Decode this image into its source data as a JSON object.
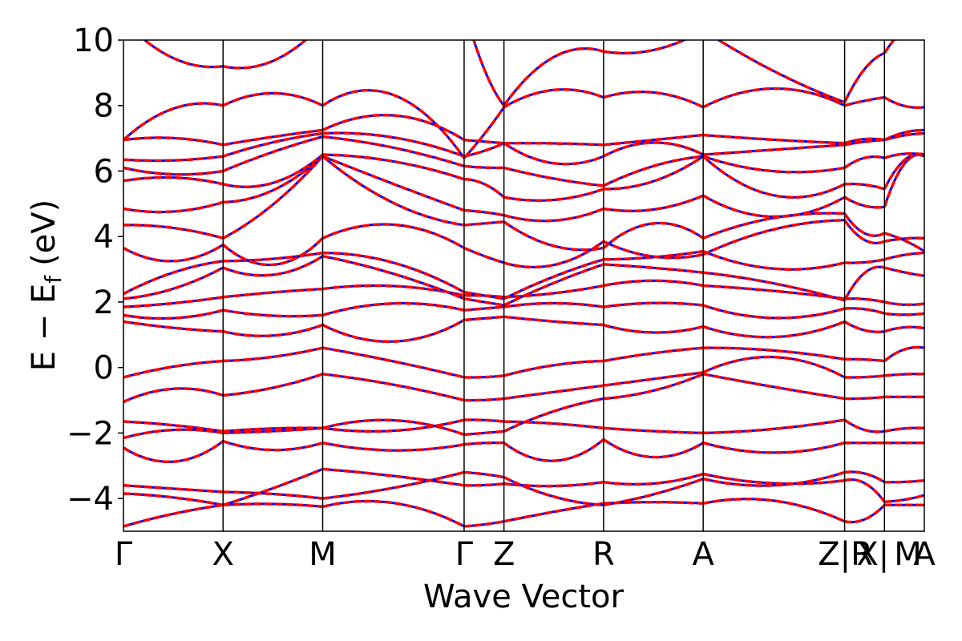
{
  "chart_data": {
    "type": "line",
    "xlabel": "Wave Vector",
    "ylabel_main": "E − E",
    "ylabel_sub": "f",
    "ylabel_unit": "(eV)",
    "ylim": [
      -5,
      10
    ],
    "yticks": [
      -4,
      -2,
      0,
      2,
      4,
      6,
      8,
      10
    ],
    "ytick_labels": [
      "−4",
      "−2",
      "0",
      "2",
      "4",
      "6",
      "8",
      "10"
    ],
    "kpoints": [
      {
        "label": "Γ",
        "pos": 0.0
      },
      {
        "label": "X",
        "pos": 0.5
      },
      {
        "label": "M",
        "pos": 1.0
      },
      {
        "label": "Γ",
        "pos": 1.71
      },
      {
        "label": "Z",
        "pos": 1.91
      },
      {
        "label": "R",
        "pos": 2.41
      },
      {
        "label": "A",
        "pos": 2.91
      },
      {
        "label": "Z",
        "pos": 3.62
      },
      {
        "label": "|R",
        "pos": 3.62
      },
      {
        "label": "X|",
        "pos": 3.82
      },
      {
        "label": "M",
        "pos": 3.82
      },
      {
        "label": "A",
        "pos": 4.02
      }
    ],
    "x_range": [
      0,
      4.02
    ],
    "series_colors": {
      "reference": "#ff0000",
      "comparison": "#0000ff"
    },
    "segments": [
      {
        "x_start": 0.0,
        "x_end": 0.5,
        "bands": [
          [
            -4.85,
            -4.45,
            -4.2
          ],
          [
            -3.85,
            -3.95,
            -4.2
          ],
          [
            -3.6,
            -3.7,
            -3.8
          ],
          [
            -2.45,
            -3.05,
            -2.25
          ],
          [
            -2.15,
            -1.85,
            -2.0
          ],
          [
            -1.65,
            -1.75,
            -1.95
          ],
          [
            -1.05,
            -0.55,
            -0.85
          ],
          [
            -0.3,
            0.05,
            0.2
          ],
          [
            1.4,
            1.2,
            1.1
          ],
          [
            1.6,
            1.45,
            1.75
          ],
          [
            1.85,
            1.95,
            2.15
          ],
          [
            2.1,
            2.35,
            3.05
          ],
          [
            2.25,
            2.95,
            3.25
          ],
          [
            3.65,
            3.1,
            3.75
          ],
          [
            4.35,
            4.3,
            3.95
          ],
          [
            4.85,
            4.7,
            5.05
          ],
          [
            5.7,
            5.85,
            5.6
          ],
          [
            6.1,
            5.85,
            6.0
          ],
          [
            6.35,
            6.3,
            6.45
          ],
          [
            6.95,
            7.05,
            6.8
          ],
          [
            6.95,
            8.05,
            8.0
          ],
          [
            10.6,
            9.3,
            9.2
          ]
        ]
      },
      {
        "x_start": 0.5,
        "x_end": 1.0,
        "bands": [
          [
            -4.2,
            -4.15,
            -4.25
          ],
          [
            -4.2,
            -3.7,
            -3.1
          ],
          [
            -3.8,
            -3.85,
            -4.0
          ],
          [
            -2.25,
            -2.6,
            -2.3
          ],
          [
            -2.0,
            -1.95,
            -1.85
          ],
          [
            -1.95,
            -1.85,
            -1.85
          ],
          [
            -0.85,
            -0.65,
            -0.2
          ],
          [
            0.2,
            0.3,
            0.6
          ],
          [
            1.1,
            0.9,
            1.3
          ],
          [
            1.75,
            1.55,
            1.6
          ],
          [
            2.15,
            2.3,
            2.4
          ],
          [
            3.05,
            2.7,
            3.4
          ],
          [
            3.25,
            3.3,
            3.5
          ],
          [
            3.75,
            2.9,
            3.95
          ],
          [
            3.95,
            4.9,
            6.45
          ],
          [
            5.05,
            5.3,
            6.45
          ],
          [
            5.6,
            5.5,
            6.5
          ],
          [
            6.0,
            6.6,
            7.05
          ],
          [
            6.45,
            6.9,
            7.15
          ],
          [
            6.8,
            7.05,
            7.25
          ],
          [
            8.0,
            8.5,
            8.0
          ],
          [
            9.2,
            9.2,
            10.5
          ]
        ]
      },
      {
        "x_start": 1.0,
        "x_end": 1.71,
        "bands": [
          [
            -4.25,
            -4.0,
            -4.85
          ],
          [
            -3.1,
            -3.3,
            -3.6
          ],
          [
            -4.0,
            -3.7,
            -3.2
          ],
          [
            -2.3,
            -2.6,
            -2.35
          ],
          [
            -1.85,
            -2.0,
            -1.6
          ],
          [
            -1.85,
            -1.5,
            -2.05
          ],
          [
            -0.2,
            -0.5,
            -1.0
          ],
          [
            0.6,
            0.2,
            -0.3
          ],
          [
            1.3,
            0.6,
            1.45
          ],
          [
            1.6,
            2.05,
            1.75
          ],
          [
            2.4,
            2.55,
            2.2
          ],
          [
            3.4,
            2.9,
            2.1
          ],
          [
            3.5,
            3.3,
            2.3
          ],
          [
            3.95,
            4.55,
            3.65
          ],
          [
            6.45,
            4.9,
            4.35
          ],
          [
            6.45,
            5.6,
            4.8
          ],
          [
            6.5,
            6.35,
            5.75
          ],
          [
            7.05,
            6.75,
            6.15
          ],
          [
            7.15,
            7.1,
            6.45
          ],
          [
            7.25,
            7.9,
            6.95
          ],
          [
            8.0,
            8.7,
            6.4
          ],
          [
            10.5,
            9.9,
            11.0
          ]
        ]
      },
      {
        "x_start": 1.71,
        "x_end": 1.91,
        "bands": [
          [
            -4.85,
            -4.8,
            -4.7
          ],
          [
            -3.6,
            -3.6,
            -3.55
          ],
          [
            -3.2,
            -3.25,
            -3.35
          ],
          [
            -2.35,
            -2.3,
            -2.3
          ],
          [
            -1.6,
            -1.6,
            -1.65
          ],
          [
            -2.05,
            -2.0,
            -1.95
          ],
          [
            -1.0,
            -1.0,
            -0.95
          ],
          [
            -0.3,
            -0.3,
            -0.25
          ],
          [
            1.45,
            1.5,
            1.55
          ],
          [
            1.75,
            1.8,
            1.85
          ],
          [
            2.2,
            2.2,
            2.15
          ],
          [
            2.1,
            2.0,
            1.9
          ],
          [
            2.3,
            2.2,
            2.1
          ],
          [
            3.65,
            3.4,
            3.2
          ],
          [
            4.35,
            4.4,
            4.45
          ],
          [
            4.8,
            4.75,
            4.65
          ],
          [
            5.75,
            5.65,
            5.2
          ],
          [
            6.15,
            6.1,
            6.1
          ],
          [
            6.45,
            6.6,
            6.85
          ],
          [
            6.95,
            6.9,
            6.85
          ],
          [
            6.4,
            7.1,
            7.95
          ],
          [
            11.0,
            9.0,
            8.0
          ]
        ]
      },
      {
        "x_start": 1.91,
        "x_end": 2.41,
        "bands": [
          [
            -4.7,
            -4.4,
            -4.15
          ],
          [
            -3.55,
            -3.65,
            -3.5
          ],
          [
            -3.35,
            -4.0,
            -4.2
          ],
          [
            -2.3,
            -3.05,
            -2.2
          ],
          [
            -1.65,
            -1.7,
            -1.85
          ],
          [
            -1.95,
            -1.3,
            -0.95
          ],
          [
            -0.95,
            -0.75,
            -0.55
          ],
          [
            -0.25,
            0.1,
            0.2
          ],
          [
            1.55,
            1.4,
            1.3
          ],
          [
            1.85,
            2.0,
            1.85
          ],
          [
            2.15,
            2.25,
            2.5
          ],
          [
            1.9,
            2.6,
            3.15
          ],
          [
            2.1,
            2.8,
            3.3
          ],
          [
            3.2,
            3.0,
            3.85
          ],
          [
            4.45,
            3.6,
            3.65
          ],
          [
            4.65,
            4.4,
            4.85
          ],
          [
            5.2,
            5.05,
            5.45
          ],
          [
            6.1,
            5.75,
            5.55
          ],
          [
            6.85,
            6.1,
            6.45
          ],
          [
            6.85,
            6.85,
            6.8
          ],
          [
            7.95,
            8.6,
            8.25
          ],
          [
            8.0,
            9.7,
            9.65
          ]
        ]
      },
      {
        "x_start": 2.41,
        "x_end": 2.91,
        "bands": [
          [
            -4.15,
            -4.1,
            -4.15
          ],
          [
            -3.5,
            -3.6,
            -3.25
          ],
          [
            -4.2,
            -3.9,
            -3.4
          ],
          [
            -2.2,
            -2.9,
            -2.3
          ],
          [
            -1.85,
            -1.95,
            -2.0
          ],
          [
            -0.95,
            -0.75,
            -0.2
          ],
          [
            -0.55,
            -0.35,
            -0.15
          ],
          [
            0.2,
            0.45,
            0.6
          ],
          [
            1.3,
            1.0,
            1.25
          ],
          [
            1.85,
            2.0,
            1.9
          ],
          [
            2.5,
            2.7,
            2.5
          ],
          [
            3.15,
            3.05,
            2.9
          ],
          [
            3.3,
            3.35,
            3.55
          ],
          [
            3.85,
            3.3,
            3.45
          ],
          [
            3.65,
            4.6,
            3.95
          ],
          [
            4.85,
            4.75,
            5.25
          ],
          [
            5.45,
            5.6,
            6.45
          ],
          [
            5.55,
            6.2,
            6.45
          ],
          [
            6.45,
            7.0,
            6.5
          ],
          [
            6.8,
            6.95,
            7.1
          ],
          [
            8.25,
            8.5,
            7.95
          ],
          [
            9.65,
            9.6,
            10.3
          ]
        ]
      },
      {
        "x_start": 2.91,
        "x_end": 3.62,
        "bands": [
          [
            -4.15,
            -3.95,
            -4.7
          ],
          [
            -3.25,
            -3.6,
            -3.45
          ],
          [
            -3.4,
            -3.7,
            -3.2
          ],
          [
            -2.3,
            -2.7,
            -2.3
          ],
          [
            -2.0,
            -1.9,
            -1.6
          ],
          [
            -0.2,
            -0.6,
            -0.95
          ],
          [
            -0.15,
            0.5,
            -0.3
          ],
          [
            0.6,
            0.55,
            0.25
          ],
          [
            1.25,
            0.8,
            1.4
          ],
          [
            1.9,
            1.4,
            1.8
          ],
          [
            2.5,
            2.35,
            2.1
          ],
          [
            2.9,
            2.6,
            2.05
          ],
          [
            3.55,
            2.9,
            3.2
          ],
          [
            3.45,
            4.3,
            4.5
          ],
          [
            3.95,
            4.65,
            4.7
          ],
          [
            5.25,
            4.4,
            5.2
          ],
          [
            6.45,
            5.0,
            5.6
          ],
          [
            6.45,
            5.9,
            6.1
          ],
          [
            6.5,
            6.65,
            6.8
          ],
          [
            7.1,
            6.95,
            6.85
          ],
          [
            7.95,
            8.7,
            8.0
          ],
          [
            10.3,
            9.0,
            8.1
          ]
        ]
      },
      {
        "x_start": 3.62,
        "x_end": 3.82,
        "bands": [
          [
            -4.7,
            -4.7,
            -4.2
          ],
          [
            -3.45,
            -3.45,
            -4.1
          ],
          [
            -3.2,
            -3.2,
            -3.5
          ],
          [
            -2.3,
            -2.3,
            -2.3
          ],
          [
            -1.6,
            -1.95,
            -1.95
          ],
          [
            -0.95,
            -0.95,
            -0.9
          ],
          [
            -0.3,
            -0.3,
            -0.25
          ],
          [
            0.25,
            0.25,
            0.2
          ],
          [
            1.4,
            1.1,
            1.1
          ],
          [
            1.8,
            1.8,
            1.65
          ],
          [
            2.1,
            2.1,
            2.0
          ],
          [
            2.05,
            3.0,
            3.05
          ],
          [
            3.2,
            3.2,
            3.3
          ],
          [
            4.5,
            3.8,
            3.85
          ],
          [
            4.7,
            4.0,
            4.1
          ],
          [
            5.2,
            4.9,
            4.9
          ],
          [
            5.6,
            5.6,
            5.45
          ],
          [
            6.1,
            6.45,
            6.4
          ],
          [
            6.8,
            6.9,
            6.95
          ],
          [
            6.85,
            7.0,
            6.95
          ],
          [
            8.0,
            8.15,
            8.25
          ],
          [
            8.1,
            9.2,
            9.6
          ]
        ]
      },
      {
        "x_start": 3.82,
        "x_end": 4.02,
        "bands": [
          [
            -4.2,
            -4.2,
            -4.2
          ],
          [
            -4.1,
            -4.05,
            -3.9
          ],
          [
            -3.5,
            -3.5,
            -3.45
          ],
          [
            -2.3,
            -2.3,
            -2.3
          ],
          [
            -1.95,
            -1.85,
            -1.85
          ],
          [
            -0.9,
            -0.9,
            -0.9
          ],
          [
            -0.25,
            -0.2,
            -0.2
          ],
          [
            0.2,
            0.6,
            0.6
          ],
          [
            1.1,
            1.25,
            1.2
          ],
          [
            1.65,
            1.6,
            1.65
          ],
          [
            2.0,
            1.9,
            1.95
          ],
          [
            3.05,
            2.9,
            2.8
          ],
          [
            3.3,
            3.45,
            3.5
          ],
          [
            3.85,
            3.95,
            3.95
          ],
          [
            4.1,
            3.9,
            3.55
          ],
          [
            4.9,
            6.4,
            6.45
          ],
          [
            5.45,
            6.45,
            6.5
          ],
          [
            6.4,
            6.55,
            6.5
          ],
          [
            6.95,
            7.1,
            7.15
          ],
          [
            6.95,
            7.2,
            7.25
          ],
          [
            8.25,
            7.95,
            7.95
          ],
          [
            9.6,
            10.4,
            10.5
          ]
        ]
      }
    ]
  }
}
